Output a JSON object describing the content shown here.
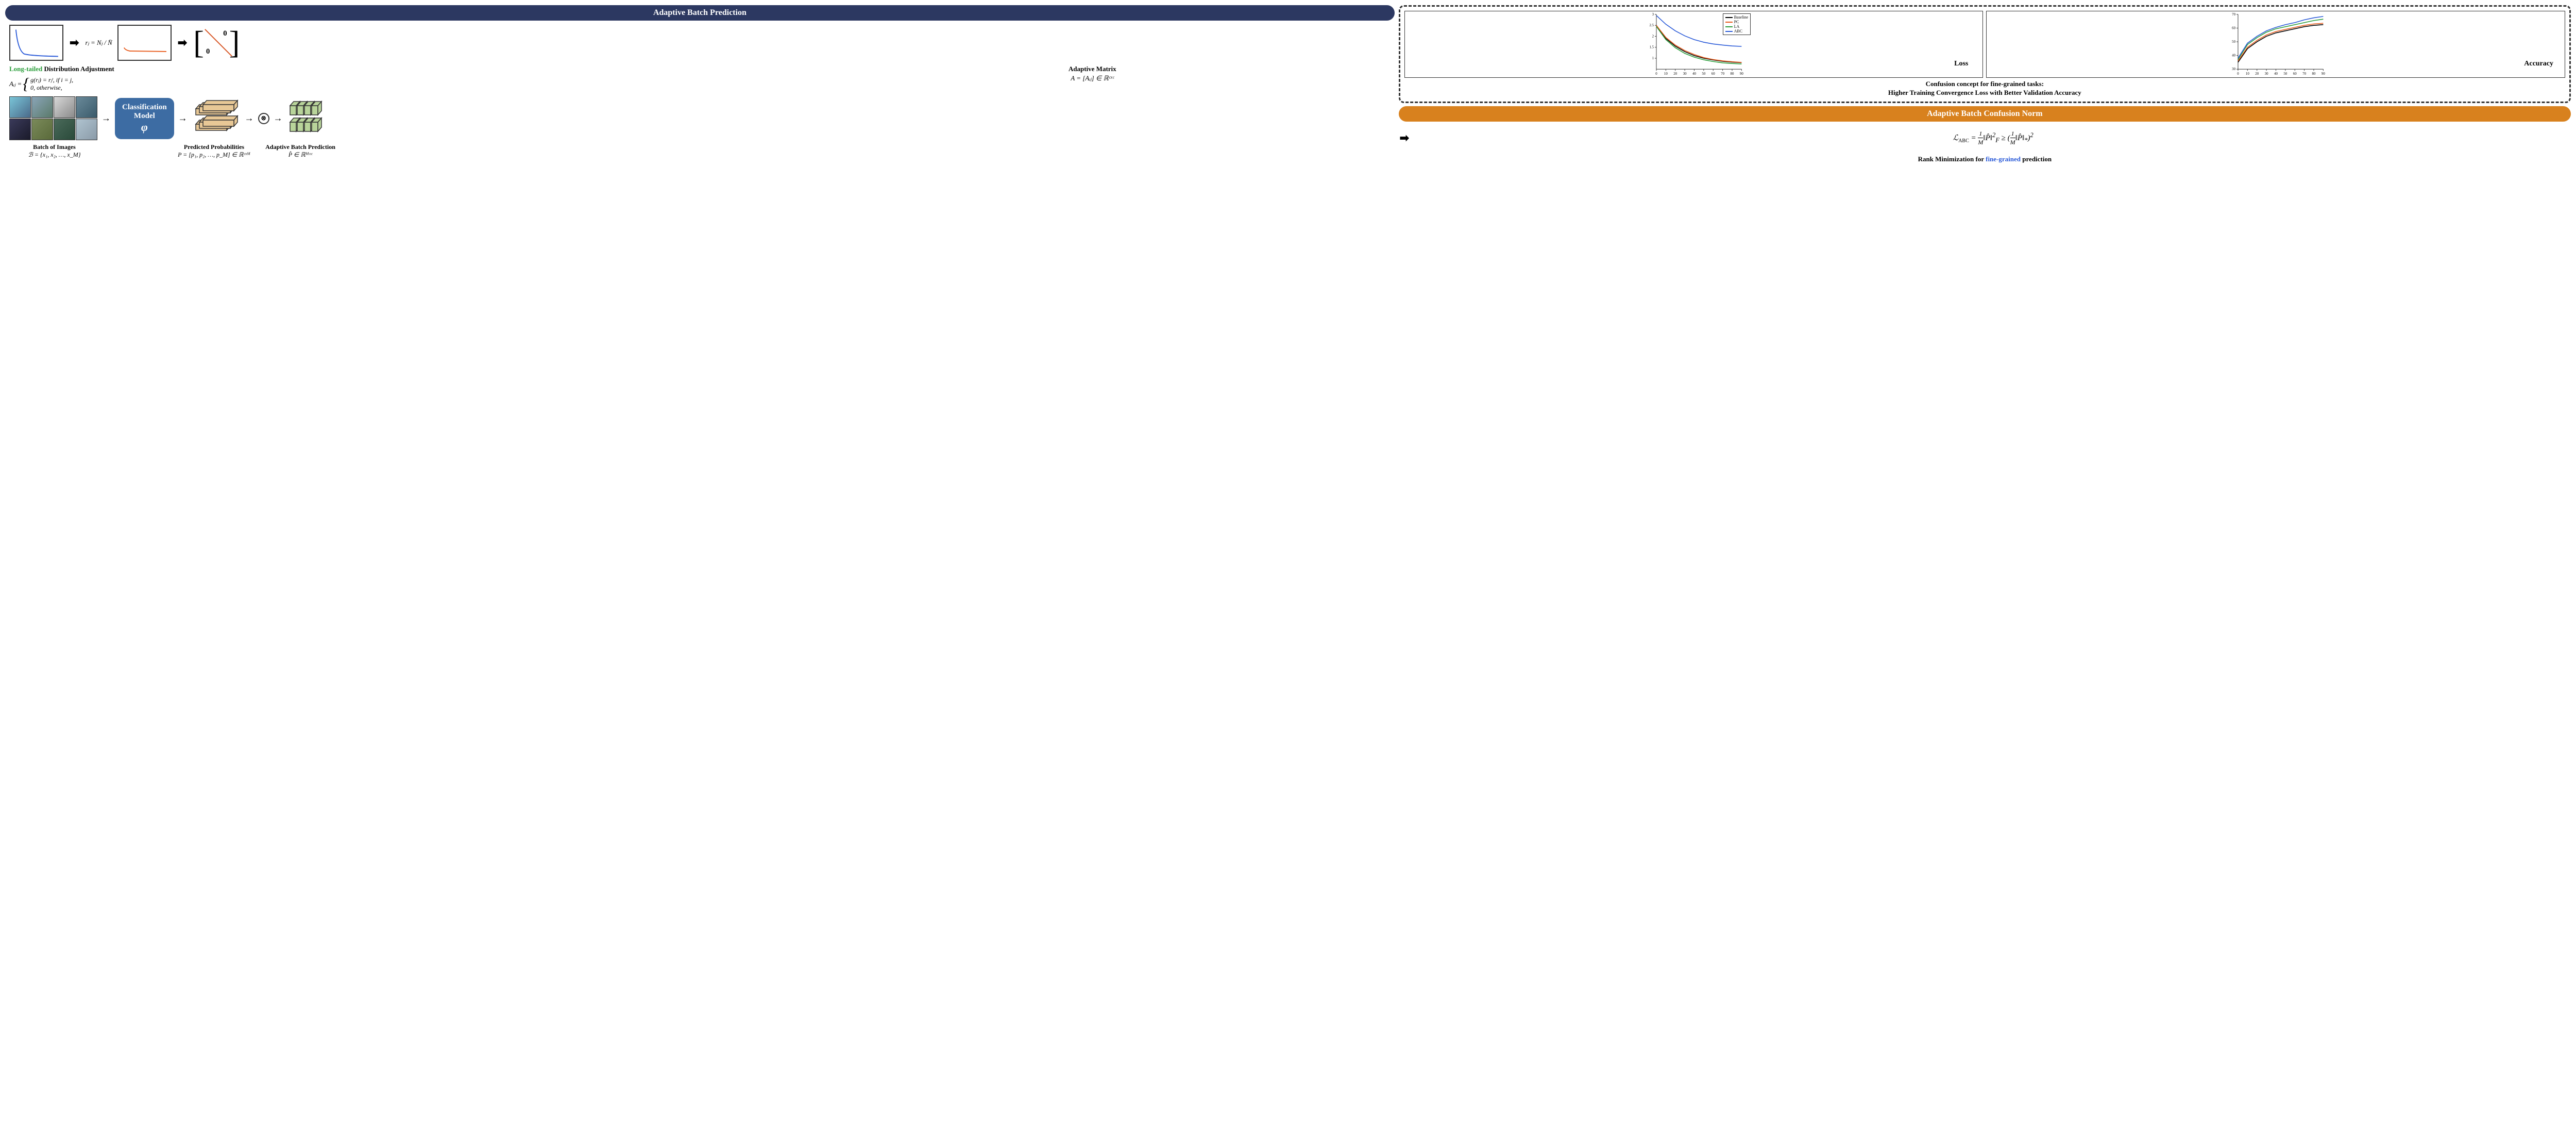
{
  "banners": {
    "abp": "Adaptive Batch Prediction",
    "abcn": "Adaptive Batch Confusion Norm"
  },
  "top": {
    "rj_formula": "rⱼ = Nⱼ / N̄",
    "longtailed": "Long-tailed",
    "dist_adj": " Distribution Adjustment",
    "aij_lhs": "Aᵢⱼ = ",
    "aij_case1": "g(rⱼ) = rⱼᵗ,   if i = j,",
    "aij_case2": "0,                otherwise,",
    "adaptive_matrix": "Adaptive Matrix",
    "matrix_formula": "A = [Aᵢⱼ] ∈ ℝᶜˣᶜ"
  },
  "model": {
    "line1": "Classification",
    "line2": "Model",
    "phi": "φ"
  },
  "labels": {
    "batch": "Batch of Images",
    "batch_formula": "ℬ = {x₁, x₂, …, x_M}",
    "pred_prob": "Predicted Probabilities",
    "pred_formula": "P = [p₁, p₂, …, p_M] ∈ ℝᶜˣᴹ",
    "abp": "Adaptive Batch Prediction",
    "abp_formula": "P̂ ∈ ℝᴹˣᶜ"
  },
  "charts": {
    "loss_label": "Loss",
    "acc_label": "Accuracy",
    "legend": [
      "Baseline",
      "PC",
      "LA",
      "ABC"
    ],
    "legend_colors": [
      "#000000",
      "#e85a1a",
      "#2a9d3a",
      "#2a5ad8"
    ],
    "loss": {
      "xlim": [
        0,
        90
      ],
      "ylim": [
        0.5,
        3
      ],
      "xticks": [
        0,
        10,
        20,
        30,
        40,
        50,
        60,
        70,
        80,
        90
      ],
      "yticks": [
        1,
        1.5,
        2,
        2.5,
        3
      ],
      "series": {
        "Baseline": [
          [
            0,
            2.5
          ],
          [
            10,
            1.9
          ],
          [
            20,
            1.55
          ],
          [
            30,
            1.3
          ],
          [
            40,
            1.12
          ],
          [
            50,
            1.0
          ],
          [
            60,
            0.92
          ],
          [
            70,
            0.86
          ],
          [
            80,
            0.82
          ],
          [
            90,
            0.8
          ]
        ],
        "PC": [
          [
            0,
            2.5
          ],
          [
            10,
            1.95
          ],
          [
            20,
            1.6
          ],
          [
            30,
            1.35
          ],
          [
            40,
            1.17
          ],
          [
            50,
            1.03
          ],
          [
            60,
            0.94
          ],
          [
            70,
            0.88
          ],
          [
            80,
            0.84
          ],
          [
            90,
            0.81
          ]
        ],
        "LA": [
          [
            0,
            2.45
          ],
          [
            10,
            1.85
          ],
          [
            20,
            1.48
          ],
          [
            30,
            1.22
          ],
          [
            40,
            1.05
          ],
          [
            50,
            0.93
          ],
          [
            60,
            0.85
          ],
          [
            70,
            0.79
          ],
          [
            80,
            0.76
          ],
          [
            90,
            0.74
          ]
        ],
        "ABC": [
          [
            0,
            2.95
          ],
          [
            10,
            2.55
          ],
          [
            20,
            2.25
          ],
          [
            30,
            2.02
          ],
          [
            40,
            1.85
          ],
          [
            50,
            1.73
          ],
          [
            60,
            1.65
          ],
          [
            70,
            1.6
          ],
          [
            80,
            1.56
          ],
          [
            90,
            1.54
          ]
        ]
      }
    },
    "acc": {
      "xlim": [
        0,
        90
      ],
      "ylim": [
        30,
        70
      ],
      "xticks": [
        0,
        10,
        20,
        30,
        40,
        50,
        60,
        70,
        80,
        90
      ],
      "yticks": [
        30,
        40,
        50,
        60,
        70
      ],
      "series": {
        "Baseline": [
          [
            0,
            35
          ],
          [
            10,
            45
          ],
          [
            20,
            50
          ],
          [
            30,
            54
          ],
          [
            40,
            56.5
          ],
          [
            50,
            58
          ],
          [
            60,
            59.5
          ],
          [
            70,
            61
          ],
          [
            80,
            62
          ],
          [
            90,
            62.5
          ]
        ],
        "PC": [
          [
            0,
            36
          ],
          [
            10,
            46
          ],
          [
            20,
            51
          ],
          [
            30,
            55
          ],
          [
            40,
            57.5
          ],
          [
            50,
            59
          ],
          [
            60,
            60.5
          ],
          [
            70,
            62
          ],
          [
            80,
            63
          ],
          [
            90,
            63.5
          ]
        ],
        "LA": [
          [
            0,
            37
          ],
          [
            10,
            48
          ],
          [
            20,
            53
          ],
          [
            30,
            57
          ],
          [
            40,
            59.5
          ],
          [
            50,
            61
          ],
          [
            60,
            62.5
          ],
          [
            70,
            64
          ],
          [
            80,
            65.5
          ],
          [
            90,
            66.5
          ]
        ],
        "ABC": [
          [
            0,
            38
          ],
          [
            10,
            49
          ],
          [
            20,
            54
          ],
          [
            30,
            58
          ],
          [
            40,
            60.5
          ],
          [
            50,
            62.5
          ],
          [
            60,
            64
          ],
          [
            70,
            66
          ],
          [
            80,
            67.5
          ],
          [
            90,
            68.5
          ]
        ]
      }
    }
  },
  "confusion": {
    "line1": "Confusion concept for fine-grained tasks:",
    "line2": "Higher Training Convergence Loss with Better Validation Accuracy"
  },
  "abc_formula": "ℒ_ABC = (1/M)‖P̂‖²_F ≥ ((1/M)‖P̂‖_*)²",
  "rank_text_pre": "Rank Minimization for ",
  "rank_text_fg": "fine-grained",
  "rank_text_post": " prediction"
}
